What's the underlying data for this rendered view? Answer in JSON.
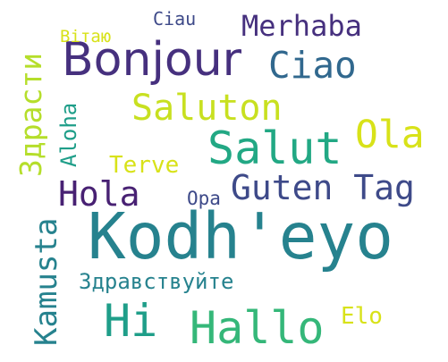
{
  "word_cloud": {
    "words": [
      {
        "id": "kodh-eyo",
        "text": "Kodh'eyo",
        "color": "#26828e"
      },
      {
        "id": "bonjour",
        "text": "Bonjour",
        "color": "#46307e"
      },
      {
        "id": "salut",
        "text": "Salut",
        "color": "#22a884"
      },
      {
        "id": "ciao",
        "text": "Ciao",
        "color": "#31688e"
      },
      {
        "id": "ola",
        "text": "Ola",
        "color": "#d8e219"
      },
      {
        "id": "merhaba",
        "text": "Merhaba",
        "color": "#46307e"
      },
      {
        "id": "saluton",
        "text": "Saluton",
        "color": "#c8e020"
      },
      {
        "id": "hola",
        "text": "Hola",
        "color": "#482173"
      },
      {
        "id": "guten-tag",
        "text": "Guten Tag",
        "color": "#3e4a89"
      },
      {
        "id": "hi",
        "text": "Hi",
        "color": "#1f9e89"
      },
      {
        "id": "hallo",
        "text": "Hallo",
        "color": "#35b779"
      },
      {
        "id": "zdravstvuyte",
        "text": "Здравствуйте",
        "color": "#26828e"
      },
      {
        "id": "zdrasti",
        "text": "Здрасти",
        "color": "#b5de2b"
      },
      {
        "id": "kamusta",
        "text": "Kamusta",
        "color": "#26828e"
      },
      {
        "id": "aloha",
        "text": "Aloha",
        "color": "#1f9e89"
      },
      {
        "id": "terve",
        "text": "Terve",
        "color": "#d8e219"
      },
      {
        "id": "ciau",
        "text": "Ciau",
        "color": "#3e4a89"
      },
      {
        "id": "vitayu",
        "text": "Вітаю",
        "color": "#d8e219"
      },
      {
        "id": "opa",
        "text": "Opa",
        "color": "#3e4a89"
      },
      {
        "id": "elo",
        "text": "Elo",
        "color": "#d8e219"
      }
    ]
  }
}
